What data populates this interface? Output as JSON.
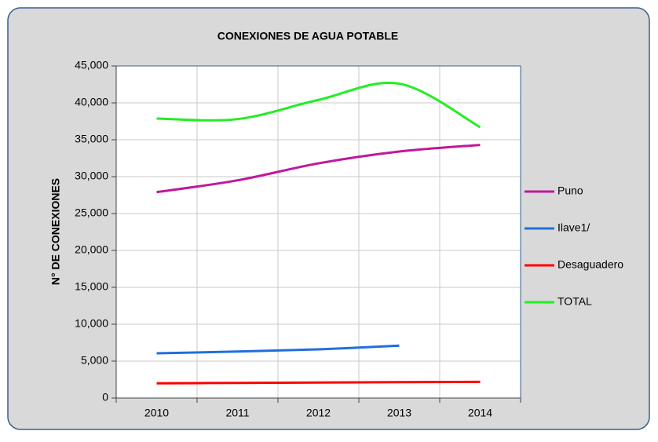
{
  "chart_data": {
    "type": "line",
    "title": "CONEXIONES DE AGUA POTABLE",
    "y_label": "N° DE CONEXIONES",
    "categories": [
      "2010",
      "2011",
      "2012",
      "2013",
      "2014"
    ],
    "series": [
      {
        "name": "Puno",
        "color": "#c0189c",
        "values": [
          27900,
          29500,
          31800,
          33400,
          34300
        ]
      },
      {
        "name": "Ilave1/",
        "color": "#1f6fe0",
        "values": [
          6060,
          6300,
          6600,
          7100,
          null
        ]
      },
      {
        "name": "Desaguadero",
        "color": "#ff0000",
        "values": [
          2000,
          2050,
          2100,
          2150,
          2200
        ]
      },
      {
        "name": "TOTAL",
        "color": "#22ee22",
        "values": [
          37870,
          37800,
          40400,
          42600,
          36700
        ]
      }
    ],
    "ylim": [
      0,
      45000
    ],
    "yticks": [
      {
        "value": 0,
        "label": "0"
      },
      {
        "value": 5000,
        "label": "5,000"
      },
      {
        "value": 10000,
        "label": "10,000"
      },
      {
        "value": 15000,
        "label": "15,000"
      },
      {
        "value": 20000,
        "label": "20,000"
      },
      {
        "value": 25000,
        "label": "25,000"
      },
      {
        "value": 30000,
        "label": "30,000"
      },
      {
        "value": 35000,
        "label": "35,000"
      },
      {
        "value": 40000,
        "label": "40,000"
      },
      {
        "value": 45000,
        "label": "45,000"
      }
    ],
    "grid": true,
    "legend": "right",
    "smooth": true
  }
}
